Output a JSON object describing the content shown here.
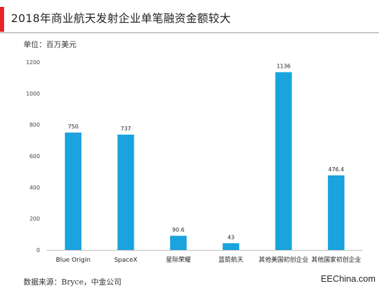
{
  "header": {
    "title": "2018年商业航天发射企业单笔融资金额较大",
    "unit": "单位：百万美元",
    "accent_color": "#e8232a"
  },
  "footer": {
    "source": "数据来源：Bryce，中金公司",
    "watermark": "EEChina.com"
  },
  "chart_data": {
    "type": "bar",
    "title": "2018年商业航天发射企业单笔融资金额较大",
    "xlabel": "",
    "ylabel": "",
    "categories": [
      "Blue Origin",
      "SpaceX",
      "星际荣耀",
      "蓝箭航天",
      "其他美国初创企业",
      "其他国家初创企业"
    ],
    "values": [
      750,
      737,
      90.6,
      43,
      1136,
      476.4
    ],
    "data_labels": [
      "750",
      "737",
      "90.6",
      "43",
      "1136",
      "476.4"
    ],
    "yticks": [
      "0",
      "200",
      "400",
      "600",
      "800",
      "1000",
      "1200"
    ],
    "ylim": [
      0,
      1200
    ],
    "grid": false,
    "bar_color": "#1aa3dc",
    "axis_color": "#bfbfbf"
  }
}
